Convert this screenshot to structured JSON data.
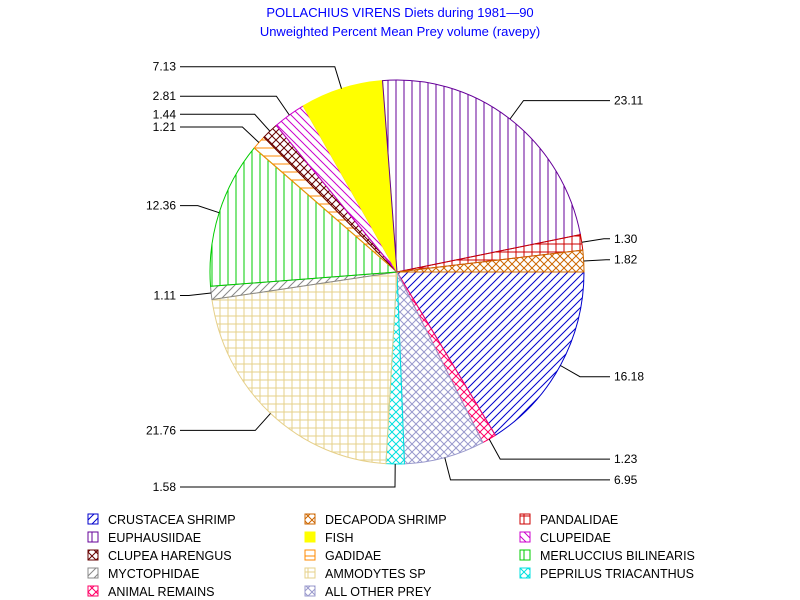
{
  "chart_data": {
    "type": "pie",
    "title": "POLLACHIUS VIRENS Diets during 1981—90",
    "subtitle": "Unweighted Percent Mean Prey volume (ravepy)",
    "legend_position": "bottom",
    "slices": [
      {
        "name": "CRUSTACEA SHRIMP",
        "value": 16.18,
        "label": "16.18",
        "color": "#0000cc",
        "pattern": "diag-up"
      },
      {
        "name": "ANIMAL REMAINS",
        "value": 1.23,
        "label": "1.23",
        "color": "#ff0066",
        "pattern": "cross-diag"
      },
      {
        "name": "ALL OTHER PREY",
        "value": 6.95,
        "label": "6.95",
        "color": "#9999cc",
        "pattern": "cross-diag"
      },
      {
        "name": "PEPRILUS TRIACANTHUS",
        "value": 1.58,
        "label": "1.58",
        "color": "#00e0e0",
        "pattern": "cross-diag"
      },
      {
        "name": "AMMODYTES SP",
        "value": 21.76,
        "label": "21.76",
        "color": "#e6d08a",
        "pattern": "grid"
      },
      {
        "name": "MYCTOPHIDAE",
        "value": 1.11,
        "label": "1.11",
        "color": "#888888",
        "pattern": "diag-up"
      },
      {
        "name": "MERLUCCIUS BILINEARIS",
        "value": 12.36,
        "label": "12.36",
        "color": "#00cc00",
        "pattern": "vertical"
      },
      {
        "name": "GADIDAE",
        "value": 1.21,
        "label": "1.21",
        "color": "#ff8800",
        "pattern": "horizontal"
      },
      {
        "name": "CLUPEA HARENGUS",
        "value": 1.44,
        "label": "1.44",
        "color": "#660000",
        "pattern": "cross-diag"
      },
      {
        "name": "CLUPEIDAE",
        "value": 2.81,
        "label": "2.81",
        "color": "#cc00cc",
        "pattern": "diag-down"
      },
      {
        "name": "FISH",
        "value": 7.13,
        "label": "7.13",
        "color": "#ffff00",
        "pattern": "solid"
      },
      {
        "name": "EUPHAUSIIDAE",
        "value": 23.11,
        "label": "23.11",
        "color": "#660099",
        "pattern": "vertical"
      },
      {
        "name": "PANDALIDAE",
        "value": 1.3,
        "label": "1.30",
        "color": "#cc0000",
        "pattern": "grid"
      },
      {
        "name": "DECAPODA SHRIMP",
        "value": 1.82,
        "label": "1.82",
        "color": "#cc6600",
        "pattern": "cross-diag"
      }
    ],
    "legend_order": [
      "CRUSTACEA SHRIMP",
      "DECAPODA SHRIMP",
      "PANDALIDAE",
      "EUPHAUSIIDAE",
      "FISH",
      "CLUPEIDAE",
      "CLUPEA HARENGUS",
      "GADIDAE",
      "MERLUCCIUS BILINEARIS",
      "MYCTOPHIDAE",
      "AMMODYTES SP",
      "PEPRILUS TRIACANTHUS",
      "ANIMAL REMAINS",
      "ALL OTHER PREY"
    ]
  }
}
